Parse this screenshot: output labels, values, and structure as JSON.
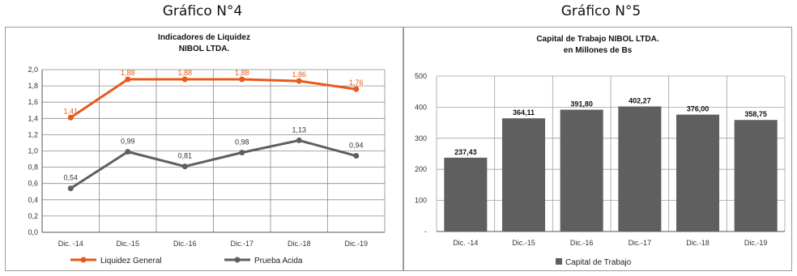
{
  "charts": [
    {
      "heading": "Gráfico N°4",
      "chart_data": {
        "type": "line",
        "title": "Indicadores de Liquidez",
        "subtitle": "NIBOL LTDA.",
        "categories": [
          "Dic. -14",
          "Dic.-15",
          "Dic.-16",
          "Dic.-17",
          "Dic.-18",
          "Dic.-19"
        ],
        "series": [
          {
            "name": "Liquidez General",
            "values": [
              1.41,
              1.88,
              1.88,
              1.88,
              1.86,
              1.76
            ],
            "labels": [
              "1,41",
              "1,88",
              "1,88",
              "1,88",
              "1,86",
              "1,76"
            ],
            "color": "#E8591A"
          },
          {
            "name": "Prueba Acida",
            "values": [
              0.54,
              0.99,
              0.81,
              0.98,
              1.13,
              0.94
            ],
            "labels": [
              "0,54",
              "0,99",
              "0,81",
              "0,98",
              "1,13",
              "0,94"
            ],
            "color": "#5F5F5F"
          }
        ],
        "ylim": [
          0,
          2.0
        ],
        "yticks": [
          "0,0",
          "0,2",
          "0,4",
          "0,6",
          "0,8",
          "1,0",
          "1,2",
          "1,4",
          "1,6",
          "1,8",
          "2,0"
        ],
        "grid": true,
        "legend": "bottom"
      }
    },
    {
      "heading": "Gráfico N°5",
      "chart_data": {
        "type": "bar",
        "title": "Capital de Trabajo NIBOL LTDA.",
        "subtitle": "en Millones de Bs",
        "categories": [
          "Dic. -14",
          "Dic.-15",
          "Dic.-16",
          "Dic.-17",
          "Dic.-18",
          "Dic.-19"
        ],
        "series": [
          {
            "name": "Capital de Trabajo",
            "values": [
              237.43,
              364.11,
              391.8,
              402.27,
              376.0,
              358.75
            ],
            "labels": [
              "237,43",
              "364,11",
              "391,80",
              "402,27",
              "376,00",
              "358,75"
            ],
            "color": "#5F5F5F"
          }
        ],
        "ylim": [
          0,
          500
        ],
        "yticks": [
          "-",
          "100",
          "200",
          "300",
          "400",
          "500"
        ],
        "grid": true,
        "legend": "bottom"
      }
    }
  ]
}
